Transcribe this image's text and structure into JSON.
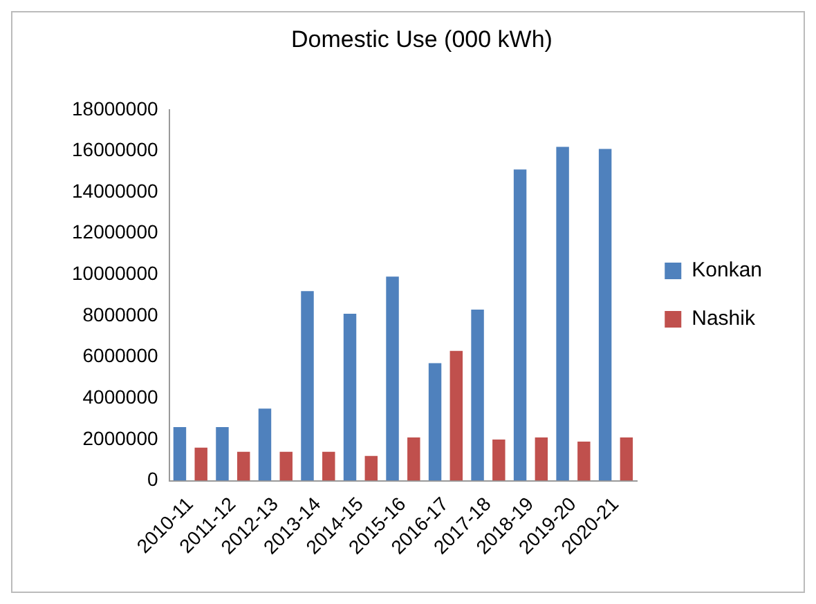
{
  "chart_data": {
    "type": "bar",
    "title": "Domestic Use (000 kWh)",
    "categories": [
      "2010-11",
      "2011-12",
      "2012-13",
      "2013-14",
      "2014-15",
      "2015-16",
      "2016-17",
      "2017-18",
      "2018-19",
      "2019-20",
      "2020-21"
    ],
    "series": [
      {
        "name": "Konkan",
        "color": "#4f81bd",
        "values": [
          2600000,
          2600000,
          3500000,
          9200000,
          8100000,
          9900000,
          5700000,
          8300000,
          15100000,
          16200000,
          16100000
        ]
      },
      {
        "name": "Nashik",
        "color": "#c0504d",
        "values": [
          1600000,
          1400000,
          1400000,
          1400000,
          1200000,
          2100000,
          6300000,
          2000000,
          2100000,
          1900000,
          2100000
        ]
      }
    ],
    "ylim": [
      0,
      18000000
    ],
    "yticks": [
      0,
      2000000,
      4000000,
      6000000,
      8000000,
      10000000,
      12000000,
      14000000,
      16000000,
      18000000
    ],
    "grid": false,
    "legend": "right"
  }
}
